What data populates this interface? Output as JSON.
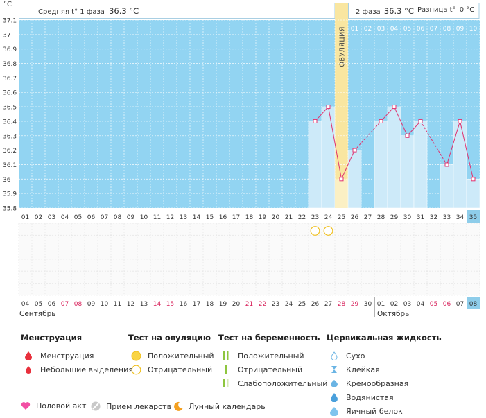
{
  "unit_label": "°C",
  "header": {
    "phase1_label": "Средняя t° 1 фаза",
    "phase1_value": "36.3 °C",
    "phase2_label": "2 фаза",
    "phase2_value": "36.3 °C",
    "diff_label": "Разница t°",
    "diff_value": "0 °C"
  },
  "ovulation_label": "ОВУЛЯЦИЯ",
  "dpo_labels": [
    "01",
    "02",
    "03",
    "04",
    "05",
    "06",
    "07",
    "08",
    "09",
    "10"
  ],
  "months": {
    "first": "Сентябрь",
    "second": "Октябрь"
  },
  "chart_data": {
    "type": "line",
    "y_ticks": [
      "37.1",
      "37",
      "36.9",
      "36.8",
      "36.7",
      "36.6",
      "36.5",
      "36.4",
      "36.3",
      "36.2",
      "36.1",
      "36",
      "35.9",
      "35.8"
    ],
    "ylim": [
      35.8,
      37.1
    ],
    "cycle_days": [
      "01",
      "02",
      "03",
      "04",
      "05",
      "06",
      "07",
      "08",
      "09",
      "10",
      "11",
      "12",
      "13",
      "14",
      "15",
      "16",
      "17",
      "18",
      "19",
      "20",
      "21",
      "22",
      "23",
      "24",
      "25",
      "26",
      "27",
      "28",
      "29",
      "30",
      "31",
      "32",
      "33",
      "34",
      "35"
    ],
    "current_cycle_day": "35",
    "dates": [
      "04",
      "05",
      "06",
      "07",
      "08",
      "09",
      "10",
      "11",
      "12",
      "13",
      "14",
      "15",
      "16",
      "17",
      "18",
      "19",
      "20",
      "21",
      "22",
      "23",
      "24",
      "25",
      "26",
      "27",
      "28",
      "29",
      "30",
      "01",
      "02",
      "03",
      "04",
      "05",
      "06",
      "07",
      "08"
    ],
    "red_dates_idx": [
      3,
      4,
      10,
      11,
      17,
      18,
      24,
      25,
      31,
      32
    ],
    "current_date_idx": 34,
    "month_break_idx": 27,
    "ovulation_day": 25,
    "temperatures": [
      {
        "day": 23,
        "value": 36.4
      },
      {
        "day": 24,
        "value": 36.5
      },
      {
        "day": 25,
        "value": 36.0
      },
      {
        "day": 26,
        "value": 36.2
      },
      {
        "day": 28,
        "value": 36.4
      },
      {
        "day": 29,
        "value": 36.5
      },
      {
        "day": 30,
        "value": 36.3
      },
      {
        "day": 31,
        "value": 36.4
      },
      {
        "day": 33,
        "value": 36.1
      },
      {
        "day": 34,
        "value": 36.4
      },
      {
        "day": 35,
        "value": 36.0
      }
    ],
    "ovulation_tests_negative_days": [
      23,
      24
    ],
    "colors": {
      "plot_bg": "#92d4f2",
      "bar_fill": "#cdeaf9",
      "ovulation_band": "#f9e6a0",
      "line": "#e0306e",
      "highlight": "#8ecdea",
      "red_date": "#d8205a",
      "grid": "#ffffff"
    }
  },
  "legend": {
    "menstruation": {
      "title": "Менструация",
      "items": [
        "Менструация",
        "Небольшие выделения"
      ]
    },
    "ovulation_test": {
      "title": "Тест на овуляцию",
      "items": [
        "Положительный",
        "Отрицательный"
      ]
    },
    "pregnancy_test": {
      "title": "Тест на беременность",
      "items": [
        "Положительный",
        "Отрицательный",
        "Слабоположительный"
      ]
    },
    "cervical": {
      "title": "Цервикальная жидкость",
      "items": [
        "Сухо",
        "Клейкая",
        "Кремообразная",
        "Водянистая",
        "Яичный белок"
      ]
    }
  },
  "bottom": {
    "intercourse": "Половой акт",
    "medication": "Прием лекарств",
    "lunar": "Лунный календарь"
  }
}
